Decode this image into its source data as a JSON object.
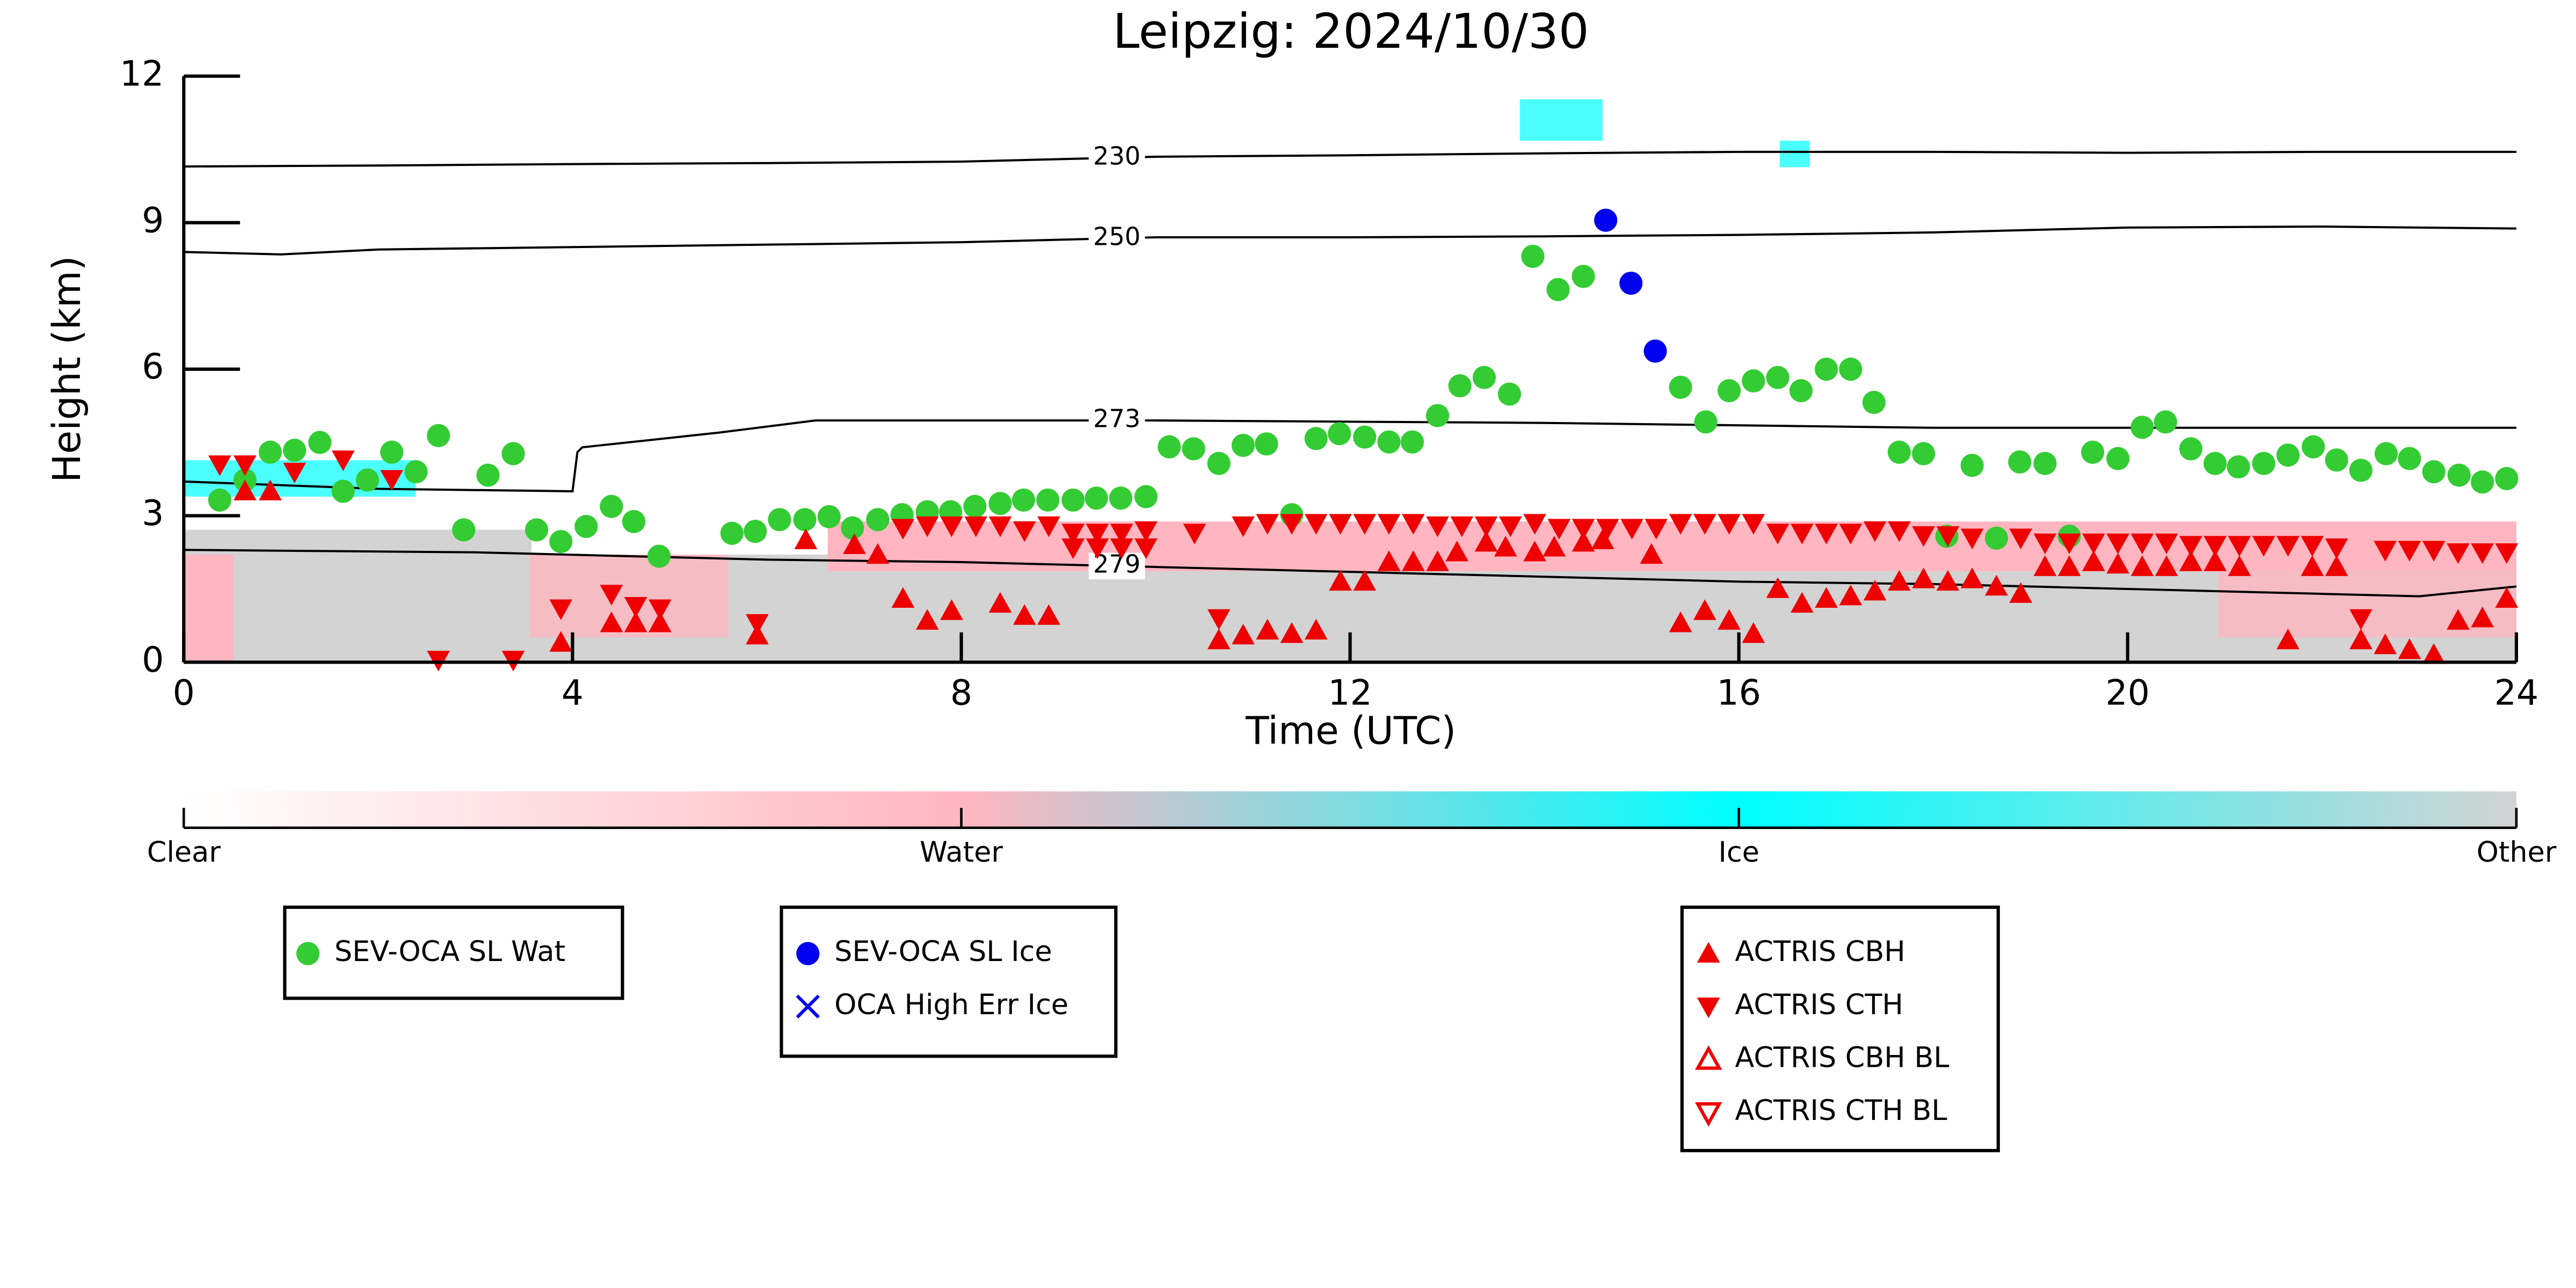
{
  "chart_data": {
    "type": "scatter",
    "title": "Leipzig: 2024/10/30",
    "x_label": "Time (UTC)",
    "y_label": "Height (km)",
    "xlim": [
      0,
      24
    ],
    "xticks": [
      0,
      4,
      8,
      12,
      16,
      20,
      24
    ],
    "ylim": [
      0,
      12
    ],
    "yticks": [
      0,
      3,
      6,
      9,
      12
    ],
    "series": [
      {
        "name": "SEV-OCA SL Wat",
        "color": "#33cc33",
        "marker": "circle",
        "x": [
          0.37,
          0.63,
          0.89,
          1.14,
          1.4,
          1.64,
          1.89,
          2.14,
          2.39,
          2.62,
          2.88,
          3.13,
          3.39,
          3.63,
          3.88,
          4.14,
          4.4,
          4.63,
          4.89,
          5.64,
          5.88,
          6.13,
          6.39,
          6.64,
          6.88,
          7.14,
          7.39,
          7.65,
          7.89,
          8.14,
          8.4,
          8.64,
          8.89,
          9.15,
          9.39,
          9.64,
          9.9,
          10.14,
          10.39,
          10.65,
          10.9,
          11.14,
          11.4,
          11.65,
          11.89,
          12.15,
          12.4,
          12.64,
          12.9,
          13.13,
          13.38,
          13.64,
          13.88,
          14.14,
          14.4,
          15.4,
          15.66,
          15.9,
          16.15,
          16.4,
          16.64,
          16.9,
          17.15,
          17.39,
          17.65,
          17.9,
          18.14,
          18.4,
          18.65,
          18.89,
          19.15,
          19.4,
          19.64,
          19.9,
          20.15,
          20.39,
          20.65,
          20.9,
          21.14,
          21.4,
          21.65,
          21.91,
          22.15,
          22.4,
          22.66,
          22.9,
          23.15,
          23.41,
          23.65,
          23.9
        ],
        "values": [
          3.32,
          3.73,
          4.3,
          4.34,
          4.5,
          3.5,
          3.73,
          4.3,
          3.9,
          4.64,
          2.71,
          3.83,
          4.27,
          2.71,
          2.47,
          2.78,
          3.19,
          2.88,
          2.17,
          2.64,
          2.68,
          2.92,
          2.92,
          2.98,
          2.75,
          2.92,
          3.02,
          3.08,
          3.08,
          3.19,
          3.25,
          3.32,
          3.32,
          3.32,
          3.36,
          3.36,
          3.39,
          4.41,
          4.37,
          4.07,
          4.44,
          4.47,
          3.02,
          4.58,
          4.68,
          4.61,
          4.51,
          4.51,
          5.05,
          5.66,
          5.83,
          5.49,
          8.31,
          7.63,
          7.9,
          5.63,
          4.92,
          5.56,
          5.76,
          5.83,
          5.56,
          6.0,
          6.0,
          5.32,
          4.3,
          4.27,
          2.58,
          4.03,
          2.54,
          4.1,
          4.07,
          2.58,
          4.3,
          4.17,
          4.81,
          4.92,
          4.37,
          4.07,
          4.0,
          4.07,
          4.24,
          4.41,
          4.14,
          3.93,
          4.27,
          4.17,
          3.9,
          3.83,
          3.69,
          3.76
        ]
      },
      {
        "name": "SEV-OCA SL Ice",
        "color": "#0000ee",
        "marker": "circle",
        "x": [
          14.63,
          14.89,
          15.14
        ],
        "values": [
          9.05,
          7.76,
          6.37
        ]
      },
      {
        "name": "OCA High Err Ice",
        "color": "#0000ee",
        "marker": "x",
        "x": [],
        "values": []
      },
      {
        "name": "ACTRIS CBH",
        "color": "#ee0000",
        "marker": "triangle-up",
        "x": [
          0.63,
          0.89,
          3.88,
          4.4,
          4.65,
          4.9,
          5.9,
          6.4,
          6.9,
          7.14,
          7.4,
          7.65,
          7.9,
          8.4,
          8.65,
          8.9,
          10.65,
          10.9,
          11.15,
          11.4,
          11.65,
          11.9,
          12.15,
          12.4,
          12.65,
          12.9,
          13.1,
          13.4,
          13.6,
          13.9,
          14.1,
          14.4,
          14.6,
          15.1,
          15.4,
          15.65,
          15.9,
          16.15,
          16.4,
          16.65,
          16.9,
          17.15,
          17.4,
          17.65,
          17.9,
          18.15,
          18.4,
          18.65,
          18.9,
          19.15,
          19.4,
          19.65,
          19.9,
          20.15,
          20.4,
          20.65,
          20.9,
          21.15,
          21.65,
          21.9,
          22.15,
          22.4,
          22.65,
          22.9,
          23.15,
          23.4,
          23.65,
          23.9
        ],
        "values": [
          3.5,
          3.5,
          0.4,
          0.8,
          0.8,
          0.8,
          0.55,
          2.5,
          2.4,
          2.2,
          1.3,
          0.85,
          1.05,
          1.2,
          0.95,
          0.95,
          0.45,
          0.55,
          0.65,
          0.58,
          0.65,
          1.65,
          1.65,
          2.05,
          2.05,
          2.05,
          2.25,
          2.45,
          2.35,
          2.25,
          2.35,
          2.45,
          2.5,
          2.2,
          0.8,
          1.05,
          0.85,
          0.58,
          1.5,
          1.2,
          1.3,
          1.35,
          1.45,
          1.65,
          1.7,
          1.65,
          1.7,
          1.55,
          1.4,
          1.95,
          1.95,
          2.05,
          2.0,
          1.95,
          1.95,
          2.05,
          2.05,
          1.95,
          0.45,
          1.95,
          1.95,
          0.45,
          0.35,
          0.25,
          0.15,
          0.85,
          0.9,
          1.3
        ]
      },
      {
        "name": "ACTRIS CTH",
        "color": "#ee0000",
        "marker": "triangle-down",
        "x": [
          0.37,
          0.63,
          1.14,
          1.64,
          2.14,
          2.62,
          3.39,
          3.88,
          4.4,
          4.65,
          4.9,
          5.9,
          7.4,
          7.65,
          7.9,
          8.15,
          8.4,
          8.65,
          8.9,
          9.15,
          9.4,
          9.65,
          9.9,
          9.15,
          9.4,
          9.65,
          9.9,
          10.4,
          10.65,
          10.9,
          11.15,
          11.4,
          11.65,
          11.9,
          12.15,
          12.4,
          12.65,
          12.9,
          13.15,
          13.4,
          13.65,
          13.9,
          14.15,
          14.4,
          14.65,
          14.9,
          15.15,
          15.4,
          15.65,
          15.9,
          16.15,
          16.4,
          16.65,
          16.9,
          17.15,
          17.4,
          17.65,
          17.9,
          18.15,
          18.4,
          18.9,
          19.15,
          19.4,
          19.65,
          19.9,
          20.15,
          20.4,
          20.65,
          20.9,
          21.15,
          21.4,
          21.65,
          21.9,
          22.15,
          22.4,
          22.65,
          22.9,
          23.15,
          23.4,
          23.65,
          23.9
        ],
        "values": [
          4.05,
          4.05,
          3.9,
          4.15,
          3.75,
          0.05,
          0.05,
          1.1,
          1.4,
          1.15,
          1.1,
          0.8,
          2.75,
          2.8,
          2.8,
          2.8,
          2.8,
          2.7,
          2.8,
          2.65,
          2.65,
          2.65,
          2.7,
          2.35,
          2.35,
          2.35,
          2.35,
          2.65,
          0.9,
          2.8,
          2.85,
          2.85,
          2.85,
          2.85,
          2.85,
          2.85,
          2.85,
          2.8,
          2.8,
          2.8,
          2.8,
          2.85,
          2.75,
          2.75,
          2.75,
          2.75,
          2.75,
          2.85,
          2.85,
          2.85,
          2.85,
          2.65,
          2.65,
          2.65,
          2.65,
          2.7,
          2.7,
          2.6,
          2.6,
          2.55,
          2.55,
          2.45,
          2.45,
          2.45,
          2.45,
          2.45,
          2.45,
          2.4,
          2.4,
          2.4,
          2.4,
          2.4,
          2.4,
          2.35,
          0.9,
          2.3,
          2.3,
          2.3,
          2.25,
          2.25,
          2.25
        ]
      },
      {
        "name": "ACTRIS CBH BL",
        "color": "#ee0000",
        "marker": "triangle-up-open",
        "x": [],
        "values": []
      },
      {
        "name": "ACTRIS CTH BL",
        "color": "#ee0000",
        "marker": "triangle-down-open",
        "x": [],
        "values": []
      }
    ],
    "contours": [
      {
        "level": 230,
        "x": [
          0,
          2,
          4,
          6,
          8,
          10,
          12,
          14,
          16,
          18,
          20,
          22,
          24
        ],
        "values": [
          10.15,
          10.17,
          10.2,
          10.22,
          10.25,
          10.35,
          10.38,
          10.42,
          10.45,
          10.45,
          10.43,
          10.45,
          10.45
        ]
      },
      {
        "level": 250,
        "x": [
          0,
          1,
          2,
          4,
          6,
          8,
          10,
          12,
          14,
          16,
          18,
          20,
          22,
          24
        ],
        "values": [
          8.4,
          8.35,
          8.45,
          8.5,
          8.55,
          8.6,
          8.7,
          8.7,
          8.72,
          8.75,
          8.8,
          8.9,
          8.92,
          8.88
        ]
      },
      {
        "level": 273,
        "x": [
          0,
          2,
          4,
          4.05,
          4.1,
          5.5,
          6.5,
          8,
          10,
          14,
          18,
          22,
          24
        ],
        "values": [
          3.7,
          3.55,
          3.5,
          4.3,
          4.4,
          4.7,
          4.95,
          4.95,
          4.95,
          4.9,
          4.8,
          4.8,
          4.8
        ]
      },
      {
        "level": 279,
        "x": [
          0,
          3,
          6,
          8,
          10,
          12,
          14,
          16,
          18,
          20,
          22,
          23,
          24
        ],
        "values": [
          2.3,
          2.25,
          2.1,
          2.05,
          1.95,
          1.85,
          1.75,
          1.65,
          1.6,
          1.5,
          1.4,
          1.35,
          1.55
        ]
      }
    ],
    "colorbar": {
      "labels": [
        "Clear",
        "Water",
        "Ice",
        "Other"
      ],
      "colors": [
        "#ffffff",
        "#ffb6c1",
        "#00ffff",
        "#d3d3d3"
      ]
    }
  }
}
